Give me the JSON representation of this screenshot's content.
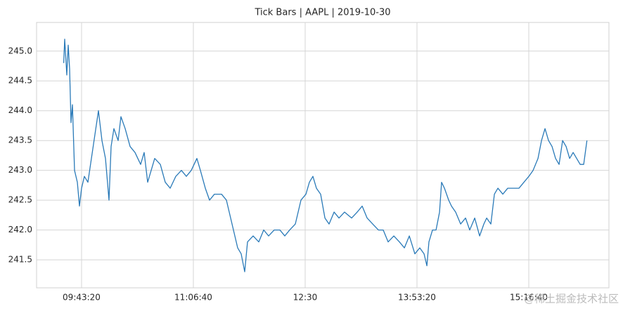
{
  "chart_data": {
    "type": "line",
    "title": "Tick Bars | AAPL | 2019-10-30",
    "x": [
      34200,
      34245,
      34340,
      34402,
      34465,
      34528,
      34591,
      34685,
      34811,
      34906,
      35000,
      35126,
      35283,
      35440,
      35598,
      35755,
      35912,
      36069,
      36227,
      36321,
      36447,
      36635,
      36761,
      36950,
      37170,
      37390,
      37642,
      37799,
      37956,
      38114,
      38271,
      38522,
      38743,
      38963,
      39214,
      39466,
      39686,
      39906,
      40158,
      40315,
      40535,
      40724,
      40944,
      41259,
      41479,
      41730,
      41982,
      42139,
      42296,
      42422,
      42674,
      42925,
      43146,
      43366,
      43617,
      43869,
      44089,
      44309,
      44561,
      44812,
      45033,
      45190,
      45347,
      45504,
      45693,
      45882,
      46070,
      46291,
      46511,
      46762,
      47077,
      47328,
      47549,
      47769,
      48020,
      48272,
      48492,
      48712,
      48964,
      49215,
      49436,
      49656,
      49907,
      50127,
      50316,
      50442,
      50536,
      50694,
      50851,
      51008,
      51102,
      51228,
      51417,
      51543,
      51731,
      51952,
      52172,
      52360,
      52581,
      52801,
      52989,
      53115,
      53304,
      53461,
      53618,
      53839,
      54059,
      54310,
      54562,
      54782,
      55002,
      55191,
      55411,
      55568,
      55726,
      55883,
      56040,
      56197,
      56355,
      56512,
      56669,
      56826,
      56984,
      57141,
      57298,
      57455,
      57600
    ],
    "series": [
      {
        "name": "AAPL",
        "color": "#2a7ab8",
        "values": [
          244.8,
          245.2,
          244.6,
          245.1,
          244.7,
          243.8,
          244.1,
          243.0,
          242.8,
          242.4,
          242.7,
          242.9,
          242.8,
          243.2,
          243.6,
          244.0,
          243.5,
          243.2,
          242.5,
          243.4,
          243.7,
          243.5,
          243.9,
          243.7,
          243.4,
          243.3,
          243.1,
          243.3,
          242.8,
          243.0,
          243.2,
          243.1,
          242.8,
          242.7,
          242.9,
          243.0,
          242.9,
          243.0,
          243.2,
          243.0,
          242.7,
          242.5,
          242.6,
          242.6,
          242.5,
          242.1,
          241.7,
          241.6,
          241.3,
          241.8,
          241.9,
          241.8,
          242.0,
          241.9,
          242.0,
          242.0,
          241.9,
          242.0,
          242.1,
          242.5,
          242.6,
          242.8,
          242.9,
          242.7,
          242.6,
          242.2,
          242.1,
          242.3,
          242.2,
          242.3,
          242.2,
          242.3,
          242.4,
          242.2,
          242.1,
          242.0,
          242.0,
          241.8,
          241.9,
          241.8,
          241.7,
          241.9,
          241.6,
          241.7,
          241.6,
          241.4,
          241.8,
          242.0,
          242.0,
          242.3,
          242.8,
          242.7,
          242.5,
          242.4,
          242.3,
          242.1,
          242.2,
          242.0,
          242.2,
          241.9,
          242.1,
          242.2,
          242.1,
          242.6,
          242.7,
          242.6,
          242.7,
          242.7,
          242.7,
          242.8,
          242.9,
          243.0,
          243.2,
          243.5,
          243.7,
          243.5,
          243.4,
          243.2,
          243.1,
          243.5,
          243.4,
          243.2,
          243.3,
          243.2,
          243.1,
          243.1,
          243.5
        ]
      }
    ],
    "xlim": [
      32987,
      58585
    ],
    "xticks": [
      {
        "value": 35000,
        "label": "09:43:20"
      },
      {
        "value": 40000,
        "label": "11:06:40"
      },
      {
        "value": 45000,
        "label": "12:30"
      },
      {
        "value": 50000,
        "label": "13:53:20"
      },
      {
        "value": 55000,
        "label": "15:16:40"
      }
    ],
    "ylim": [
      241.03,
      245.48
    ],
    "yticks": [
      241.5,
      {
        "value": 242,
        "label": "242.0"
      },
      242.5,
      {
        "value": 243,
        "label": "243.0"
      },
      243.5,
      {
        "value": 244,
        "label": "244.0"
      },
      244.5,
      {
        "value": 245,
        "label": "245.0"
      }
    ],
    "grid": true
  },
  "watermark": "@稀土掘金技术社区"
}
